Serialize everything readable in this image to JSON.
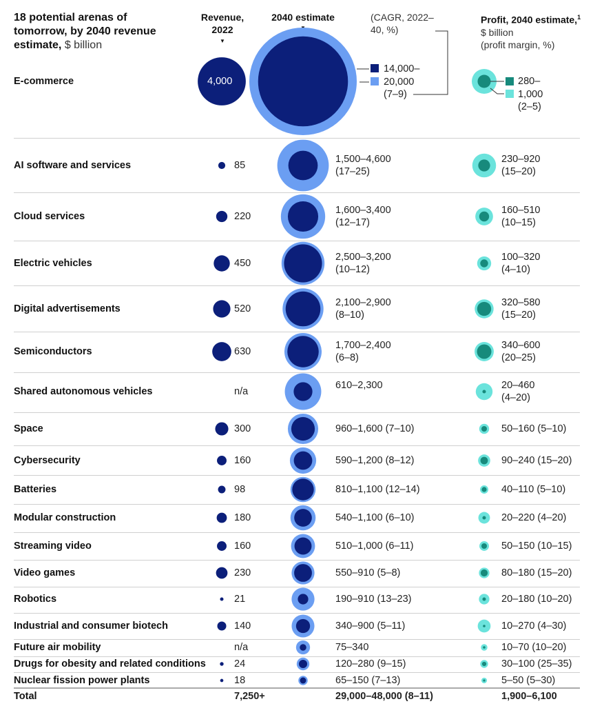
{
  "title": {
    "bold": "18 potential arenas of tomorrow, by 2040 revenue estimate,",
    "light": "$ billion"
  },
  "headers": {
    "revenue_2022": "Revenue, 2022",
    "estimate_2040": "2040 estimate",
    "cagr": "(CAGR, 2022–40, %)",
    "profit_bold": "Profit, 2040 estimate,",
    "profit_footnote": "1",
    "profit_light": "$ billion",
    "profit_margin": "(profit margin, %)"
  },
  "legend": {
    "low_label": "14,000–",
    "high_label": "20,000",
    "cagr_label": "(7–9)",
    "profit_low_label": "280–",
    "profit_high_label": "1,000",
    "profit_margin_label": "(2–5)"
  },
  "colors": {
    "navy": "#0c1f7a",
    "blue": "#6b9ef2",
    "teal": "#178a7c",
    "cyan": "#6be3dc"
  },
  "chart_data": {
    "type": "bubble-table",
    "title": "18 potential arenas of tomorrow, by 2040 revenue estimate, $ billion",
    "rows": [
      {
        "name": "E-commerce",
        "rev2022": 4000,
        "rev_text": "4,000",
        "est": [
          14000,
          20000
        ],
        "est_text": "14,000–20,000",
        "cagr": "(7–9)",
        "profit": [
          280,
          1000
        ],
        "profit_text": "280–1,000",
        "margin": "(2–5)"
      },
      {
        "name": "AI software and services",
        "rev2022": 85,
        "rev_text": "85",
        "est": [
          1500,
          4600
        ],
        "est_text": "1,500–4,600",
        "cagr": "(17–25)",
        "profit": [
          230,
          920
        ],
        "profit_text": "230–920",
        "margin": "(15–20)"
      },
      {
        "name": "Cloud services",
        "rev2022": 220,
        "rev_text": "220",
        "est": [
          1600,
          3400
        ],
        "est_text": "1,600–3,400",
        "cagr": "(12–17)",
        "profit": [
          160,
          510
        ],
        "profit_text": "160–510",
        "margin": "(10–15)"
      },
      {
        "name": "Electric vehicles",
        "rev2022": 450,
        "rev_text": "450",
        "est": [
          2500,
          3200
        ],
        "est_text": "2,500–3,200",
        "cagr": "(10–12)",
        "profit": [
          100,
          320
        ],
        "profit_text": "100–320",
        "margin": "(4–10)"
      },
      {
        "name": "Digital advertisements",
        "rev2022": 520,
        "rev_text": "520",
        "est": [
          2100,
          2900
        ],
        "est_text": "2,100–2,900",
        "cagr": "(8–10)",
        "profit": [
          320,
          580
        ],
        "profit_text": "320–580",
        "margin": "(15–20)"
      },
      {
        "name": "Semiconductors",
        "rev2022": 630,
        "rev_text": "630",
        "est": [
          1700,
          2400
        ],
        "est_text": "1,700–2,400",
        "cagr": "(6–8)",
        "profit": [
          340,
          600
        ],
        "profit_text": "340–600",
        "margin": "(20–25)"
      },
      {
        "name": "Shared autonomous vehicles",
        "rev2022": null,
        "rev_text": "n/a",
        "est": [
          610,
          2300
        ],
        "est_text": "610–2,300",
        "cagr": "",
        "profit": [
          20,
          460
        ],
        "profit_text": "20–460",
        "margin": "(4–20)"
      },
      {
        "name": "Space",
        "rev2022": 300,
        "rev_text": "300",
        "est": [
          960,
          1600
        ],
        "est_text": "960–1,600",
        "cagr": "(7–10)",
        "profit": [
          50,
          160
        ],
        "profit_text": "50–160",
        "margin": "(5–10)"
      },
      {
        "name": "Cybersecurity",
        "rev2022": 160,
        "rev_text": "160",
        "est": [
          590,
          1200
        ],
        "est_text": "590–1,200",
        "cagr": "(8–12)",
        "profit": [
          90,
          240
        ],
        "profit_text": "90–240",
        "margin": "(15–20)"
      },
      {
        "name": "Batteries",
        "rev2022": 98,
        "rev_text": "98",
        "est": [
          810,
          1100
        ],
        "est_text": "810–1,100",
        "cagr": "(12–14)",
        "profit": [
          40,
          110
        ],
        "profit_text": "40–110",
        "margin": "(5–10)"
      },
      {
        "name": "Modular construction",
        "rev2022": 180,
        "rev_text": "180",
        "est": [
          540,
          1100
        ],
        "est_text": "540–1,100",
        "cagr": "(6–10)",
        "profit": [
          20,
          220
        ],
        "profit_text": "20–220",
        "margin": "(4–20)"
      },
      {
        "name": "Streaming video",
        "rev2022": 160,
        "rev_text": "160",
        "est": [
          510,
          1000
        ],
        "est_text": "510–1,000",
        "cagr": "(6–11)",
        "profit": [
          50,
          150
        ],
        "profit_text": "50–150",
        "margin": "(10–15)"
      },
      {
        "name": "Video games",
        "rev2022": 230,
        "rev_text": "230",
        "est": [
          550,
          910
        ],
        "est_text": "550–910",
        "cagr": "(5–8)",
        "profit": [
          80,
          180
        ],
        "profit_text": "80–180",
        "margin": "(15–20)"
      },
      {
        "name": "Robotics",
        "rev2022": 21,
        "rev_text": "21",
        "est": [
          190,
          910
        ],
        "est_text": "190–910",
        "cagr": "(13–23)",
        "profit": [
          20,
          180
        ],
        "profit_text": "20–180",
        "margin": "(10–20)"
      },
      {
        "name": "Industrial and consumer biotech",
        "rev2022": 140,
        "rev_text": "140",
        "est": [
          340,
          900
        ],
        "est_text": "340–900",
        "cagr": "(5–11)",
        "profit": [
          10,
          270
        ],
        "profit_text": "10–270",
        "margin": "(4–30)"
      },
      {
        "name": "Future air mobility",
        "rev2022": null,
        "rev_text": "n/a",
        "est": [
          75,
          340
        ],
        "est_text": "75–340",
        "cagr": "",
        "profit": [
          10,
          70
        ],
        "profit_text": "10–70",
        "margin": "(10–20)"
      },
      {
        "name": "Drugs for obesity and related conditions",
        "rev2022": 24,
        "rev_text": "24",
        "est": [
          120,
          280
        ],
        "est_text": "120–280",
        "cagr": "(9–15)",
        "profit": [
          30,
          100
        ],
        "profit_text": "30–100",
        "margin": "(25–35)"
      },
      {
        "name": "Nuclear fission power plants",
        "rev2022": 18,
        "rev_text": "18",
        "est": [
          65,
          150
        ],
        "est_text": "65–150",
        "cagr": "(7–13)",
        "profit": [
          5,
          50
        ],
        "profit_text": "5–50",
        "margin": "(5–30)"
      }
    ],
    "total": {
      "name": "Total",
      "rev2022_text": "7,250+",
      "est_text": "29,000–48,000 (8–11)",
      "profit_text": "1,900–6,100"
    }
  }
}
